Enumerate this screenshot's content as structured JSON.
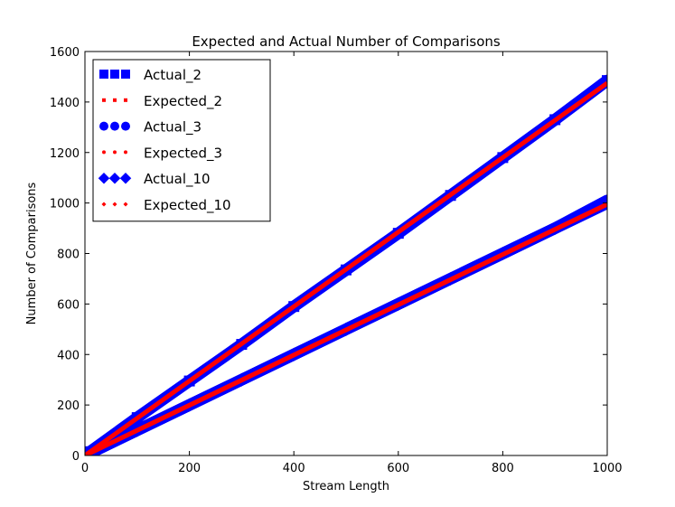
{
  "chart_data": {
    "type": "scatter",
    "title": "Expected and Actual Number of Comparisons",
    "xlabel": "Stream Length",
    "ylabel": "Number of Comparisons",
    "xlim": [
      0,
      1000
    ],
    "ylim": [
      0,
      1600
    ],
    "xticks": [
      0,
      200,
      400,
      600,
      800,
      1000
    ],
    "yticks": [
      0,
      200,
      400,
      600,
      800,
      1000,
      1200,
      1400,
      1600
    ],
    "grid": false,
    "legend_position": "top-left",
    "series": [
      {
        "name": "Actual_2",
        "kind": "actual",
        "marker": "square",
        "color": "#0000ff",
        "x": [
          10,
          100,
          200,
          300,
          400,
          500,
          600,
          700,
          800,
          900,
          1000
        ],
        "y": [
          15,
          150,
          295,
          440,
          590,
          735,
          880,
          1030,
          1180,
          1330,
          1485
        ]
      },
      {
        "name": "Expected_2",
        "kind": "expected",
        "marker": "square",
        "color": "#ff0000",
        "x": [
          0,
          1000
        ],
        "y": [
          0,
          1475
        ]
      },
      {
        "name": "Actual_3",
        "kind": "actual",
        "marker": "circle",
        "color": "#0000ff",
        "x": [
          10,
          100,
          200,
          300,
          400,
          500,
          600,
          700,
          800,
          900,
          1000
        ],
        "y": [
          10,
          100,
          200,
          300,
          400,
          500,
          600,
          700,
          800,
          900,
          1010
        ]
      },
      {
        "name": "Expected_3",
        "kind": "expected",
        "marker": "circle",
        "color": "#ff0000",
        "x": [
          0,
          1000
        ],
        "y": [
          0,
          995
        ]
      },
      {
        "name": "Actual_10",
        "kind": "actual",
        "marker": "diamond",
        "color": "#0000ff",
        "x": [
          10,
          100,
          200,
          300,
          400,
          500,
          600,
          700,
          800,
          900,
          1000
        ],
        "y": [
          10,
          100,
          200,
          300,
          400,
          500,
          600,
          700,
          800,
          900,
          1000
        ]
      },
      {
        "name": "Expected_10",
        "kind": "expected",
        "marker": "diamond",
        "color": "#ff0000",
        "x": [
          0,
          1000
        ],
        "y": [
          0,
          995
        ]
      }
    ]
  }
}
